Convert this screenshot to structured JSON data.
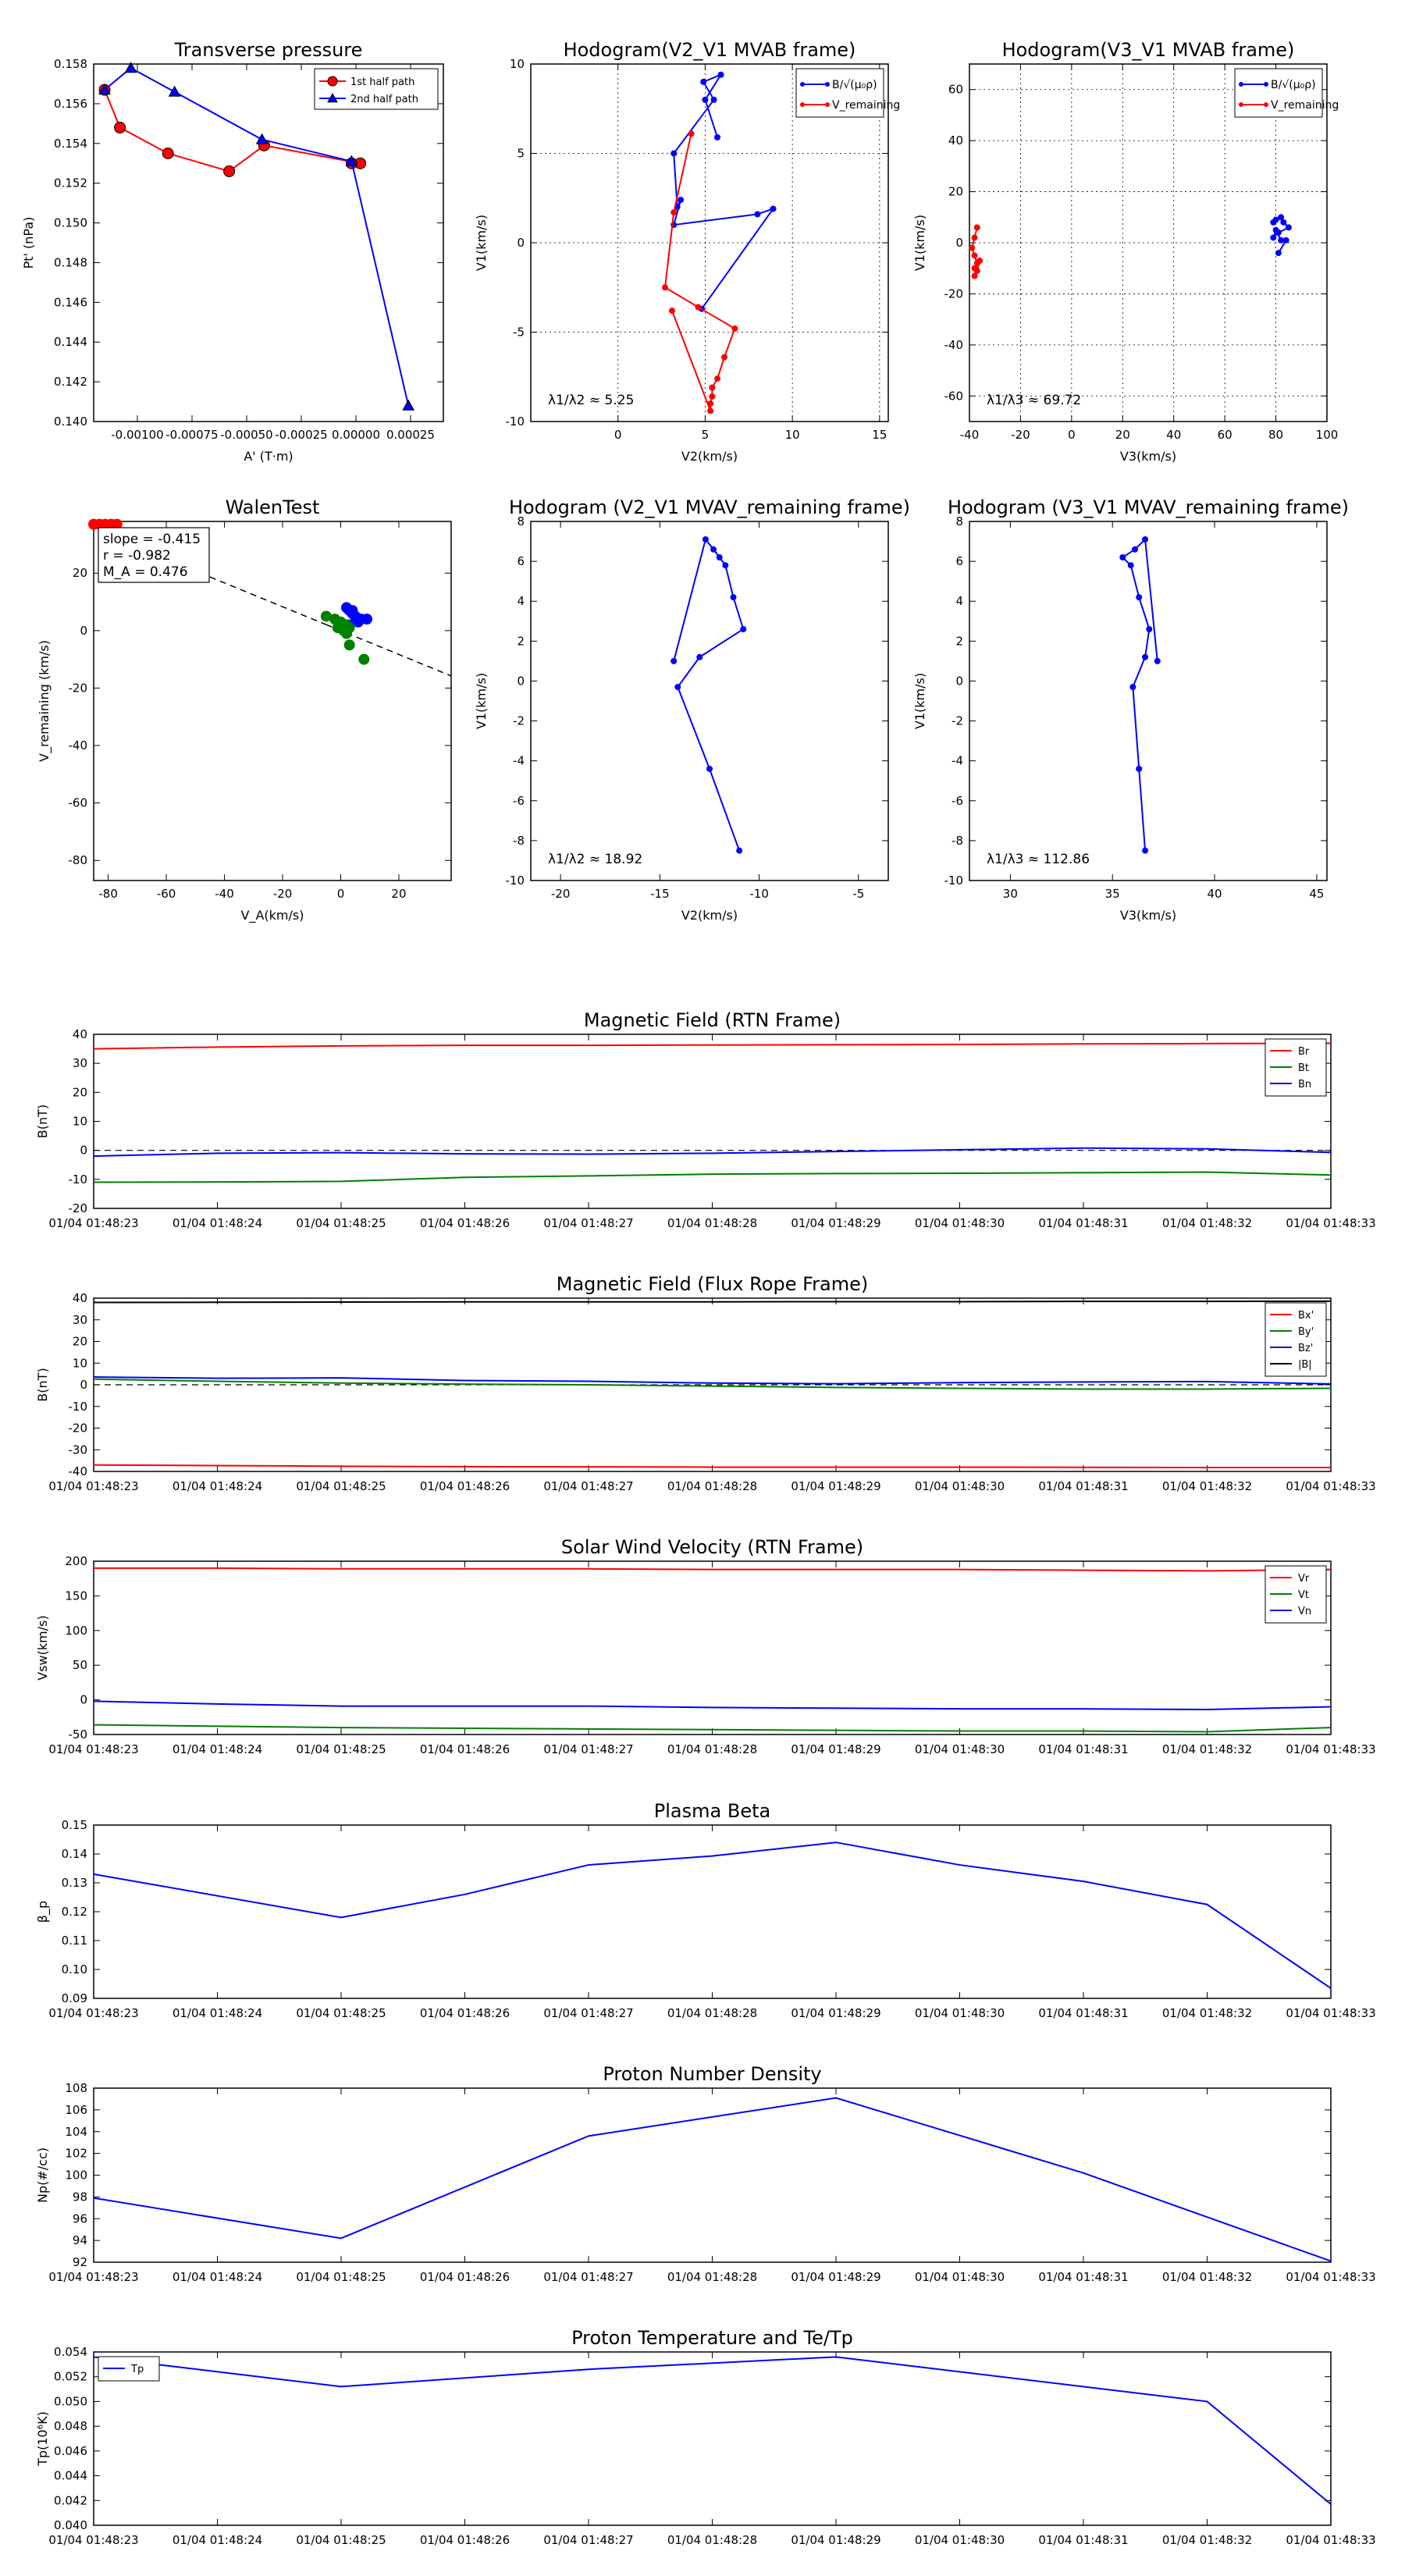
{
  "colors": {
    "red": "#ff0000",
    "blue": "#0000ff",
    "green": "#008000",
    "black": "#000000"
  },
  "time_ticks": [
    "01/04 01:48:23",
    "01/04 01:48:24",
    "01/04 01:48:25",
    "01/04 01:48:26",
    "01/04 01:48:27",
    "01/04 01:48:28",
    "01/04 01:48:29",
    "01/04 01:48:30",
    "01/04 01:48:31",
    "01/04 01:48:32",
    "01/04 01:48:33"
  ],
  "chart_data": [
    {
      "id": "transverse-pressure",
      "type": "line",
      "title": "Transverse pressure",
      "xlabel": "A' (T·m)",
      "ylabel": "Pt' (nPa)",
      "xlim": [
        -0.0012,
        0.0004
      ],
      "ylim": [
        0.14,
        0.158
      ],
      "xticks": [
        -0.001,
        -0.00075,
        -0.0005,
        -0.00025,
        0.0,
        0.00025
      ],
      "xtick_labels": [
        "-0.00100",
        "-0.00075",
        "-0.00050",
        "-0.00025",
        "0.00000",
        "0.00025"
      ],
      "yticks": [
        0.14,
        0.142,
        0.144,
        0.146,
        0.148,
        0.15,
        0.152,
        0.154,
        0.156,
        0.158
      ],
      "ytick_labels": [
        "0.140",
        "0.142",
        "0.144",
        "0.146",
        "0.148",
        "0.150",
        "0.152",
        "0.154",
        "0.156",
        "0.158"
      ],
      "grid": false,
      "legend": "top-right",
      "series": [
        {
          "name": "1st half path",
          "color": "red",
          "marker": "circle",
          "x": [
            -0.00115,
            -0.00108,
            -0.00086,
            -0.00058,
            -0.00042,
            2e-05,
            -2e-05
          ],
          "y": [
            0.1567,
            0.1548,
            0.1535,
            0.1526,
            0.1539,
            0.153,
            0.153
          ]
        },
        {
          "name": "2nd half path",
          "color": "blue",
          "marker": "triangle",
          "x": [
            -0.00115,
            -0.00103,
            -0.00083,
            -0.00043,
            -2e-05,
            0.00024
          ],
          "y": [
            0.1567,
            0.1578,
            0.1566,
            0.1542,
            0.1531,
            0.1408
          ]
        }
      ]
    },
    {
      "id": "hodogram-v2v1-mvab",
      "type": "line",
      "title": "Hodogram(V2_V1 MVAB frame)",
      "xlabel": "V2(km/s)",
      "ylabel": "V1(km/s)",
      "xlim": [
        -5,
        15.5
      ],
      "ylim": [
        -10,
        10
      ],
      "xticks": [
        0,
        5,
        10,
        15
      ],
      "xtick_labels": [
        "0",
        "5",
        "10",
        "15"
      ],
      "yticks": [
        -10,
        -5,
        0,
        5,
        10
      ],
      "ytick_labels": [
        "-10",
        "-5",
        "0",
        "5",
        "10"
      ],
      "grid": true,
      "legend": "top-right",
      "legend_labels": [
        "B/√(μ₀ρ)",
        "V_remaining"
      ],
      "annotation": "λ1/λ2 ≈ 5.25",
      "series": [
        {
          "name": "B",
          "color": "blue",
          "marker": "dot",
          "x": [
            5.7,
            5.0,
            5.9,
            4.9,
            5.5,
            3.2,
            3.4,
            3.6,
            3.2,
            8.0,
            8.9,
            4.8
          ],
          "y": [
            5.9,
            8.0,
            9.4,
            9.0,
            8.0,
            5.0,
            2.0,
            2.4,
            1.0,
            1.6,
            1.9,
            -3.7
          ]
        },
        {
          "name": "V_remaining",
          "color": "red",
          "marker": "dot",
          "x": [
            4.2,
            3.2,
            2.7,
            4.6,
            6.7,
            6.1,
            5.7,
            5.4,
            5.4,
            5.3,
            5.3,
            3.1
          ],
          "y": [
            6.1,
            1.7,
            -2.5,
            -3.6,
            -4.8,
            -6.4,
            -7.6,
            -8.1,
            -8.6,
            -9.0,
            -9.4,
            -3.8
          ]
        }
      ]
    },
    {
      "id": "hodogram-v3v1-mvab",
      "type": "scatter",
      "title": "Hodogram(V3_V1 MVAB frame)",
      "xlabel": "V3(km/s)",
      "ylabel": "V1(km/s)",
      "xlim": [
        -40,
        100
      ],
      "ylim": [
        -70,
        70
      ],
      "xticks": [
        -40,
        -20,
        0,
        20,
        40,
        60,
        80,
        100
      ],
      "xtick_labels": [
        "-40",
        "-20",
        "0",
        "20",
        "40",
        "60",
        "80",
        "100"
      ],
      "yticks": [
        -60,
        -40,
        -20,
        0,
        20,
        40,
        60
      ],
      "ytick_labels": [
        "-60",
        "-40",
        "-20",
        "0",
        "20",
        "40",
        "60"
      ],
      "grid": true,
      "legend": "top-right",
      "legend_labels": [
        "B/√(μ₀ρ)",
        "V_remaining"
      ],
      "annotation": "λ1/λ3 ≈ 69.72",
      "series": [
        {
          "name": "B",
          "color": "blue",
          "marker": "dot",
          "x": [
            79,
            80,
            82,
            83,
            85,
            81,
            79,
            80,
            82,
            84,
            81
          ],
          "y": [
            8,
            9,
            10,
            8,
            6,
            4,
            2,
            5,
            1,
            1,
            -4
          ]
        },
        {
          "name": "V_remaining",
          "color": "red",
          "marker": "dot",
          "x": [
            -37,
            -38,
            -39,
            -38,
            -37,
            -38,
            -36,
            -37,
            -38
          ],
          "y": [
            6,
            2,
            -2,
            -5,
            -8,
            -10,
            -7,
            -11,
            -13
          ]
        }
      ]
    },
    {
      "id": "walen-test",
      "type": "scatter",
      "title": "WalenTest",
      "xlabel": "V_A(km/s)",
      "ylabel": "V_remaining (km/s)",
      "xlim": [
        -85,
        38
      ],
      "ylim": [
        -87,
        38
      ],
      "xticks": [
        -80,
        -60,
        -40,
        -20,
        0,
        20
      ],
      "xtick_labels": [
        "-80",
        "-60",
        "-40",
        "-20",
        "0",
        "20"
      ],
      "yticks": [
        -80,
        -60,
        -40,
        -20,
        0,
        20
      ],
      "ytick_labels": [
        "-80",
        "-60",
        "-40",
        "-20",
        "0",
        "20"
      ],
      "grid": false,
      "stats": [
        "slope = -0.415",
        "r = -0.982",
        "M_A = 0.476"
      ],
      "fit_line": {
        "slope": -0.415,
        "intercept": 0.0
      },
      "series": [
        {
          "name": "blue",
          "color": "blue",
          "marker": "circle",
          "x": [
            2,
            3,
            4,
            5,
            7,
            9,
            6,
            3,
            4
          ],
          "y": [
            8,
            7,
            6,
            5,
            4,
            4,
            3,
            2,
            7
          ]
        },
        {
          "name": "green",
          "color": "green",
          "marker": "circle",
          "x": [
            -5,
            -2,
            0,
            2,
            1,
            3,
            3,
            8,
            -1,
            2
          ],
          "y": [
            5,
            4,
            3,
            2,
            0,
            1,
            -5,
            -10,
            1,
            -1
          ]
        },
        {
          "name": "red",
          "color": "red",
          "marker": "circle",
          "x": [
            -85,
            -83,
            -81,
            -79,
            -77
          ],
          "y": [
            37,
            37,
            37,
            37,
            37
          ]
        }
      ]
    },
    {
      "id": "hodogram-v2v1-mvav",
      "type": "line",
      "title": "Hodogram (V2_V1 MVAV_remaining frame)",
      "xlabel": "V2(km/s)",
      "ylabel": "V1(km/s)",
      "xlim": [
        -21.5,
        -3.5
      ],
      "ylim": [
        -10,
        8
      ],
      "xticks": [
        -20,
        -15,
        -10,
        -5
      ],
      "xtick_labels": [
        "-20",
        "-15",
        "-10",
        "-5"
      ],
      "yticks": [
        -10,
        -8,
        -6,
        -4,
        -2,
        0,
        2,
        4,
        6,
        8
      ],
      "ytick_labels": [
        "-10",
        "-8",
        "-6",
        "-4",
        "-2",
        "0",
        "2",
        "4",
        "6",
        "8"
      ],
      "grid": false,
      "annotation": "λ1/λ2 ≈ 18.92",
      "series": [
        {
          "name": "V",
          "color": "blue",
          "marker": "dot",
          "x": [
            -11.0,
            -12.5,
            -14.1,
            -13.0,
            -10.8,
            -11.3,
            -11.7,
            -12.0,
            -12.3,
            -12.7,
            -14.3
          ],
          "y": [
            -8.5,
            -4.4,
            -0.3,
            1.2,
            2.6,
            4.2,
            5.8,
            6.2,
            6.6,
            7.1,
            1.0
          ]
        }
      ]
    },
    {
      "id": "hodogram-v3v1-mvav",
      "type": "line",
      "title": "Hodogram (V3_V1 MVAV_remaining frame)",
      "xlabel": "V3(km/s)",
      "ylabel": "V1(km/s)",
      "xlim": [
        28,
        45.5
      ],
      "ylim": [
        -10,
        8
      ],
      "xticks": [
        30,
        35,
        40,
        45
      ],
      "xtick_labels": [
        "30",
        "35",
        "40",
        "45"
      ],
      "yticks": [
        -10,
        -8,
        -6,
        -4,
        -2,
        0,
        2,
        4,
        6,
        8
      ],
      "ytick_labels": [
        "-10",
        "-8",
        "-6",
        "-4",
        "-2",
        "0",
        "2",
        "4",
        "6",
        "8"
      ],
      "grid": false,
      "annotation": "λ1/λ3 ≈ 112.86",
      "series": [
        {
          "name": "V",
          "color": "blue",
          "marker": "dot",
          "x": [
            36.6,
            36.3,
            36.0,
            36.6,
            36.8,
            36.3,
            35.9,
            35.5,
            36.1,
            36.6,
            37.2
          ],
          "y": [
            -8.5,
            -4.4,
            -0.3,
            1.2,
            2.6,
            4.2,
            5.8,
            6.2,
            6.6,
            7.1,
            1.0
          ]
        }
      ]
    },
    {
      "id": "magnetic-field-rtn",
      "type": "line",
      "title": "Magnetic Field (RTN Frame)",
      "xlabel": "",
      "ylabel": "B(nT)",
      "ylim": [
        -20,
        40
      ],
      "yticks": [
        -20,
        -10,
        0,
        10,
        20,
        30,
        40
      ],
      "ytick_labels": [
        "-20",
        "-10",
        "0",
        "10",
        "20",
        "30",
        "40"
      ],
      "legend": "top-right",
      "zero_line": true,
      "series": [
        {
          "name": "Br",
          "color": "red",
          "values": [
            35.0,
            35.6,
            36.0,
            36.2,
            36.2,
            36.3,
            36.4,
            36.5,
            36.7,
            36.8,
            36.9
          ]
        },
        {
          "name": "Bt",
          "color": "green",
          "values": [
            -11.0,
            -10.9,
            -10.7,
            -9.3,
            -8.8,
            -8.2,
            -8.0,
            -7.9,
            -7.7,
            -7.5,
            -8.5
          ]
        },
        {
          "name": "Bn",
          "color": "blue",
          "values": [
            -2.0,
            -1.0,
            -0.8,
            -1.2,
            -1.3,
            -1.0,
            -0.4,
            0.2,
            0.8,
            0.5,
            -0.7
          ]
        }
      ]
    },
    {
      "id": "magnetic-field-flux-rope",
      "type": "line",
      "title": "Magnetic Field (Flux Rope Frame)",
      "xlabel": "",
      "ylabel": "B(nT)",
      "ylim": [
        -40,
        40
      ],
      "yticks": [
        -40,
        -30,
        -20,
        -10,
        0,
        10,
        20,
        30,
        40
      ],
      "ytick_labels": [
        "-40",
        "-30",
        "-20",
        "-10",
        "0",
        "10",
        "20",
        "30",
        "40"
      ],
      "legend": "top-right",
      "zero_line": true,
      "series": [
        {
          "name": "Bx'",
          "color": "red",
          "values": [
            -37.0,
            -37.3,
            -37.6,
            -37.8,
            -37.9,
            -38.0,
            -38.0,
            -38.0,
            -38.1,
            -38.2,
            -38.2
          ]
        },
        {
          "name": "By'",
          "color": "green",
          "values": [
            2.6,
            1.6,
            0.8,
            0.3,
            0.0,
            -0.6,
            -1.2,
            -1.6,
            -2.0,
            -2.0,
            -1.6
          ]
        },
        {
          "name": "Bz'",
          "color": "blue",
          "values": [
            3.6,
            3.0,
            3.2,
            2.0,
            1.6,
            0.8,
            0.5,
            1.0,
            1.3,
            1.5,
            0.4
          ]
        },
        {
          "name": "|B|",
          "color": "black",
          "values": [
            38.0,
            38.1,
            38.2,
            38.3,
            38.3,
            38.3,
            38.4,
            38.4,
            38.5,
            38.5,
            38.6
          ]
        }
      ]
    },
    {
      "id": "solar-wind-velocity",
      "type": "line",
      "title": "Solar Wind Velocity (RTN Frame)",
      "xlabel": "",
      "ylabel": "Vsw(km/s)",
      "ylim": [
        -50,
        200
      ],
      "yticks": [
        -50,
        0,
        50,
        100,
        150,
        200
      ],
      "ytick_labels": [
        "-50",
        "0",
        "50",
        "100",
        "150",
        "200"
      ],
      "legend": "top-right",
      "series": [
        {
          "name": "Vr",
          "color": "red",
          "values": [
            190,
            190,
            189,
            189,
            189,
            188,
            188,
            188,
            187,
            186,
            188
          ]
        },
        {
          "name": "Vt",
          "color": "green",
          "values": [
            -36,
            -38,
            -40,
            -41,
            -42,
            -43,
            -44,
            -45,
            -45,
            -46,
            -40
          ]
        },
        {
          "name": "Vn",
          "color": "blue",
          "values": [
            -2,
            -6,
            -9,
            -9,
            -9,
            -11,
            -12,
            -13,
            -13,
            -14,
            -10
          ]
        }
      ]
    },
    {
      "id": "plasma-beta",
      "type": "line",
      "title": "Plasma Beta",
      "xlabel": "",
      "ylabel": "β_p",
      "ylim": [
        0.09,
        0.15
      ],
      "yticks": [
        0.09,
        0.1,
        0.11,
        0.12,
        0.13,
        0.14,
        0.15
      ],
      "ytick_labels": [
        "0.09",
        "0.10",
        "0.11",
        "0.12",
        "0.13",
        "0.14",
        "0.15"
      ],
      "series": [
        {
          "name": "beta",
          "color": "blue",
          "x": [
            0,
            2,
            3,
            4,
            5,
            6,
            7,
            8,
            9,
            10
          ],
          "values": [
            0.133,
            0.118,
            0.126,
            0.1362,
            0.1393,
            0.144,
            0.1362,
            0.1305,
            0.1225,
            0.0935
          ]
        }
      ]
    },
    {
      "id": "proton-number-density",
      "type": "line",
      "title": "Proton Number Density",
      "xlabel": "",
      "ylabel": "Np(#/cc)",
      "ylim": [
        92,
        108
      ],
      "yticks": [
        92,
        94,
        96,
        98,
        100,
        102,
        104,
        106,
        108
      ],
      "ytick_labels": [
        "92",
        "94",
        "96",
        "98",
        "100",
        "102",
        "104",
        "106",
        "108"
      ],
      "series": [
        {
          "name": "Np",
          "color": "blue",
          "x": [
            0,
            2,
            4,
            6,
            8,
            10
          ],
          "values": [
            97.9,
            94.2,
            103.6,
            107.1,
            100.2,
            92.1
          ]
        }
      ]
    },
    {
      "id": "proton-temperature",
      "type": "line",
      "title": "Proton Temperature and Te/Tp",
      "xlabel": "",
      "ylabel": "Tp(10⁶K)",
      "ylim": [
        0.04,
        0.054
      ],
      "yticks": [
        0.04,
        0.042,
        0.044,
        0.046,
        0.048,
        0.05,
        0.052,
        0.054
      ],
      "ytick_labels": [
        "0.040",
        "0.042",
        "0.044",
        "0.046",
        "0.048",
        "0.050",
        "0.052",
        "0.054"
      ],
      "legend": "top-left",
      "series": [
        {
          "name": "Tp",
          "color": "blue",
          "x": [
            0,
            2,
            4,
            6,
            9,
            10
          ],
          "values": [
            0.0536,
            0.0512,
            0.0526,
            0.0536,
            0.05,
            0.0417
          ]
        }
      ]
    }
  ]
}
